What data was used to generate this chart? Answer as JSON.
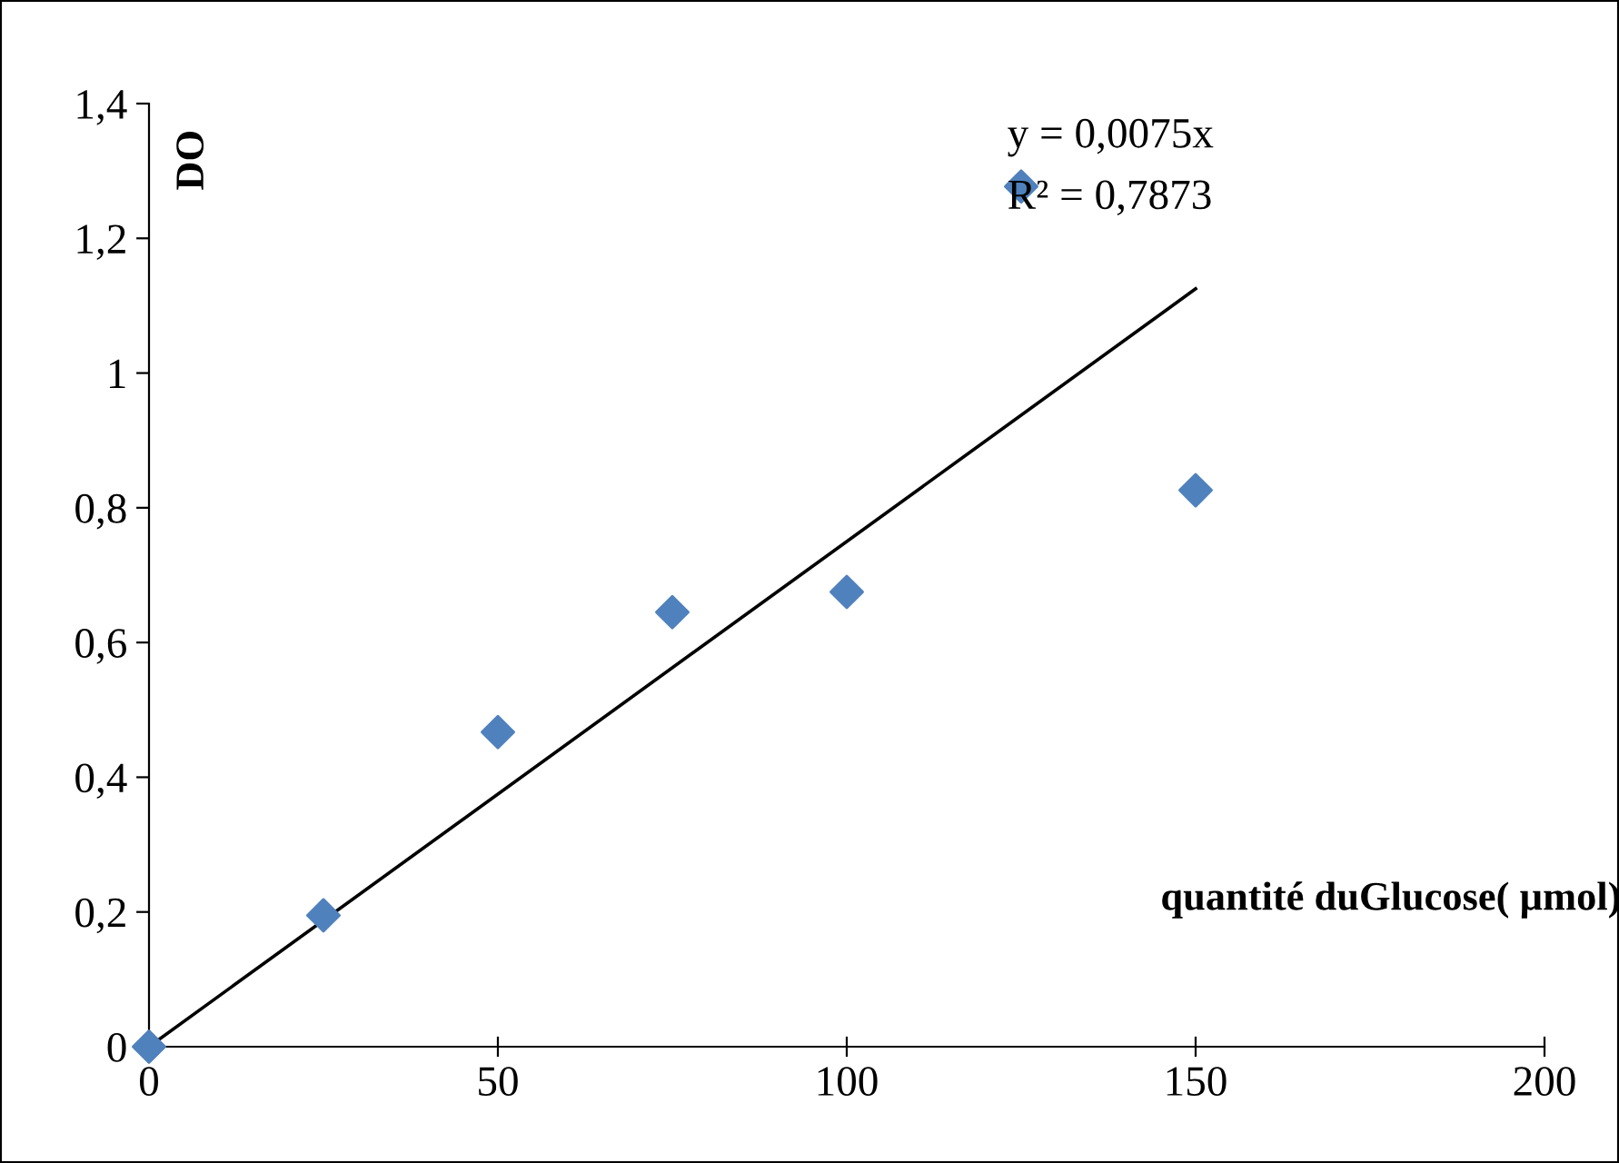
{
  "chart_data": {
    "type": "scatter",
    "xlabel": "quantité duGlucose( µmol)",
    "ylabel": "DO",
    "series": [
      {
        "color": "#4f81bd",
        "marker": "diamond",
        "x": [
          0,
          25,
          50,
          75,
          100,
          125,
          150
        ],
        "values": [
          0,
          0.195,
          0.467,
          0.645,
          0.675,
          1.277,
          0.826
        ]
      },
      {
        "type": "line",
        "color": "#000000",
        "marker": "none",
        "line_style": "solid",
        "x": [
          0,
          150
        ],
        "values": [
          0,
          1.125
        ]
      }
    ],
    "annotations": [
      "y = 0,0075x",
      "R² = 0,7873"
    ],
    "xlim": [
      0,
      200
    ],
    "xticks": [
      0,
      50,
      100,
      150,
      200
    ],
    "ylim": [
      0,
      1.4
    ],
    "yticks": [
      0,
      {
        "value": 0.2,
        "label": "0,2"
      },
      {
        "value": 0.4,
        "label": "0,4"
      },
      {
        "value": 0.6,
        "label": "0,6"
      },
      {
        "value": 0.8,
        "label": "0,8"
      },
      1,
      {
        "value": 1.2,
        "label": "1,2"
      },
      {
        "value": 1.4,
        "label": "1,4"
      }
    ],
    "grid": false,
    "legend": false
  }
}
